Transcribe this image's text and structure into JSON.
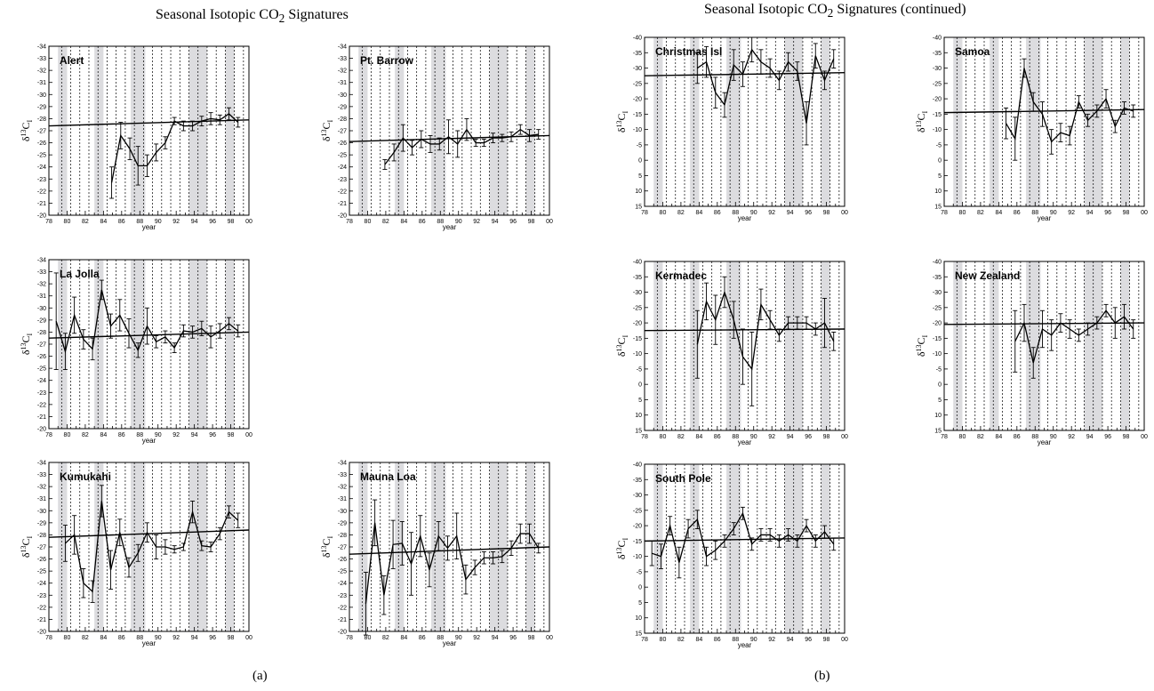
{
  "figure": {
    "title_a_pre": "Seasonal Isotopic CO",
    "title_a_sub": "2",
    "title_a_post": " Signatures",
    "title_b_pre": "Seasonal Isotopic CO",
    "title_b_sub": "2",
    "title_b_post": " Signatures (continued)",
    "caption_a": "(a)",
    "caption_b": "(b)"
  },
  "chart_data": [
    {
      "type": "line",
      "site": "Alert",
      "xlabel": "year",
      "ylabel": "δ13CI",
      "ylim": [
        -20,
        -34
      ],
      "yticks": [
        -34,
        -33,
        -32,
        -31,
        -30,
        -29,
        -28,
        -27,
        -26,
        -25,
        -24,
        -23,
        -22,
        -21,
        -20
      ],
      "xticks": [
        "78",
        "80",
        "82",
        "84",
        "86",
        "88",
        "90",
        "92",
        "94",
        "96",
        "98",
        "00"
      ],
      "x": [
        84.9,
        85.9,
        86.9,
        87.8,
        88.8,
        89.8,
        90.8,
        91.8,
        92.8,
        93.8,
        94.8,
        95.8,
        96.8,
        97.8,
        98.8
      ],
      "values": [
        -22.7,
        -26.6,
        -25.5,
        -24.1,
        -24.1,
        -25.2,
        -26.0,
        -27.8,
        -27.4,
        -27.4,
        -27.8,
        -28.0,
        -27.9,
        -28.4,
        -27.7
      ],
      "err": [
        1.3,
        1.1,
        0.9,
        1.6,
        0.9,
        0.7,
        0.5,
        0.3,
        0.4,
        0.4,
        0.4,
        0.5,
        0.4,
        0.5,
        0.4
      ],
      "trend": [
        -27.4,
        -27.9
      ]
    },
    {
      "type": "line",
      "site": "Pt. Barrow",
      "xlabel": "year",
      "ylabel": "δ13CI",
      "ylim": [
        -20,
        -34
      ],
      "yticks": [
        -34,
        -33,
        -32,
        -31,
        -30,
        -29,
        -28,
        -27,
        -26,
        -25,
        -24,
        -23,
        -22,
        -21,
        -20
      ],
      "xticks": [
        "78",
        "80",
        "82",
        "84",
        "86",
        "88",
        "90",
        "92",
        "94",
        "96",
        "98",
        "00"
      ],
      "x": [
        81.9,
        82.9,
        83.9,
        84.9,
        85.9,
        86.9,
        87.9,
        88.9,
        89.9,
        90.9,
        91.9,
        92.8,
        93.8,
        94.8,
        95.8,
        96.8,
        97.8,
        98.8
      ],
      "values": [
        -24.2,
        -25.2,
        -26.4,
        -25.6,
        -26.3,
        -25.9,
        -25.9,
        -26.5,
        -25.9,
        -27.1,
        -26.0,
        -26.0,
        -26.4,
        -26.4,
        -26.5,
        -27.1,
        -26.6,
        -26.7
      ],
      "err": [
        0.4,
        0.7,
        1.1,
        0.6,
        0.7,
        0.7,
        0.5,
        1.4,
        1.1,
        0.9,
        0.3,
        0.3,
        0.4,
        0.3,
        0.4,
        0.4,
        0.5,
        0.4
      ],
      "trend": [
        -26.1,
        -26.6
      ]
    },
    {
      "type": "line",
      "site": "La Jolla",
      "xlabel": "year",
      "ylabel": "δ13CI",
      "ylim": [
        -20,
        -34
      ],
      "yticks": [
        -34,
        -33,
        -32,
        -31,
        -30,
        -29,
        -28,
        -27,
        -26,
        -25,
        -24,
        -23,
        -22,
        -21,
        -20
      ],
      "xticks": [
        "78",
        "80",
        "82",
        "84",
        "86",
        "88",
        "90",
        "92",
        "94",
        "96",
        "98",
        "00"
      ],
      "x": [
        78.8,
        79.8,
        80.8,
        81.8,
        82.8,
        83.8,
        84.8,
        85.8,
        86.8,
        87.8,
        88.8,
        89.8,
        90.8,
        91.8,
        92.8,
        93.8,
        94.8,
        95.8,
        96.8,
        97.8,
        98.8
      ],
      "values": [
        -28.9,
        -26.4,
        -29.4,
        -27.4,
        -26.6,
        -31.5,
        -28.5,
        -29.4,
        -27.9,
        -26.5,
        -28.5,
        -27.2,
        -27.6,
        -26.7,
        -28.1,
        -28.0,
        -28.3,
        -27.6,
        -28.1,
        -28.7,
        -28.1
      ],
      "err": [
        4.0,
        1.5,
        1.5,
        0.8,
        0.9,
        0.8,
        1.0,
        1.3,
        1.2,
        0.6,
        1.5,
        0.5,
        0.5,
        0.4,
        0.5,
        0.5,
        0.6,
        0.9,
        0.6,
        0.5,
        0.5
      ],
      "trend": [
        -27.5,
        -28.0
      ]
    },
    {
      "type": "line",
      "site": "Kumukahi",
      "xlabel": "year",
      "ylabel": "δ13CI",
      "ylim": [
        -20,
        -34
      ],
      "yticks": [
        -34,
        -33,
        -32,
        -31,
        -30,
        -29,
        -28,
        -27,
        -26,
        -25,
        -24,
        -23,
        -22,
        -21,
        -20
      ],
      "xticks": [
        "78",
        "80",
        "82",
        "84",
        "86",
        "88",
        "90",
        "92",
        "94",
        "96",
        "98",
        "00"
      ],
      "x": [
        79.8,
        80.8,
        81.8,
        82.8,
        83.8,
        84.8,
        85.8,
        86.8,
        87.8,
        88.8,
        89.8,
        90.8,
        91.8,
        92.8,
        93.8,
        94.8,
        95.8,
        96.8,
        97.8,
        98.8
      ],
      "values": [
        -27.3,
        -28.0,
        -24.0,
        -23.3,
        -30.8,
        -25.1,
        -28.2,
        -25.3,
        -26.5,
        -28.2,
        -27.0,
        -27.0,
        -26.8,
        -27.0,
        -29.9,
        -27.1,
        -27.0,
        -28.1,
        -29.9,
        -29.2
      ],
      "err": [
        1.5,
        1.6,
        1.2,
        0.9,
        1.3,
        1.6,
        1.1,
        0.8,
        0.7,
        0.8,
        1.0,
        0.6,
        0.3,
        0.3,
        0.9,
        0.4,
        0.4,
        0.5,
        0.5,
        0.6
      ],
      "trend": [
        -27.8,
        -28.4
      ]
    },
    {
      "type": "line",
      "site": "Mauna Loa",
      "xlabel": "year",
      "ylabel": "δ13CI",
      "ylim": [
        -20,
        -34
      ],
      "yticks": [
        -34,
        -33,
        -32,
        -31,
        -30,
        -29,
        -28,
        -27,
        -26,
        -25,
        -24,
        -23,
        -22,
        -21,
        -20
      ],
      "xticks": [
        "78",
        "80",
        "82",
        "84",
        "86",
        "88",
        "90",
        "92",
        "94",
        "96",
        "98",
        "00"
      ],
      "x": [
        79.8,
        80.8,
        81.8,
        82.8,
        83.8,
        84.8,
        85.8,
        86.8,
        87.8,
        88.8,
        89.8,
        90.8,
        91.8,
        92.8,
        93.8,
        94.8,
        95.8,
        96.8,
        97.8,
        98.8
      ],
      "values": [
        -22.3,
        -29.0,
        -23.0,
        -27.2,
        -27.3,
        -25.6,
        -27.9,
        -25.1,
        -27.9,
        -26.9,
        -27.9,
        -24.3,
        -25.3,
        -26.1,
        -26.1,
        -26.2,
        -26.9,
        -28.1,
        -28.1,
        -26.9
      ],
      "err": [
        2.6,
        1.9,
        1.6,
        2.0,
        1.8,
        2.6,
        1.7,
        1.4,
        1.2,
        1.0,
        1.9,
        1.2,
        0.6,
        0.5,
        0.5,
        0.5,
        0.6,
        0.8,
        0.8,
        0.4
      ],
      "trend": [
        -26.4,
        -27.0
      ]
    },
    {
      "type": "line",
      "site": "Christmas Isl",
      "xlabel": "year",
      "ylabel": "δ13CI",
      "ylim": [
        15,
        -40
      ],
      "yticks": [
        -40,
        -35,
        -30,
        -25,
        -20,
        -15,
        -10,
        -5,
        0,
        5,
        10,
        15
      ],
      "xticks": [
        "78",
        "80",
        "82",
        "84",
        "86",
        "88",
        "90",
        "92",
        "94",
        "96",
        "98",
        "00"
      ],
      "x": [
        83.8,
        84.8,
        85.8,
        86.8,
        87.8,
        88.8,
        89.8,
        90.8,
        91.8,
        92.8,
        93.8,
        94.8,
        95.8,
        96.8,
        97.8,
        98.8
      ],
      "values": [
        -30,
        -32,
        -22,
        -18,
        -31,
        -28,
        -36,
        -32,
        -30,
        -26,
        -32,
        -29,
        -12,
        -34,
        -26,
        -33
      ],
      "err": [
        5,
        5,
        5,
        4,
        5,
        4,
        4,
        4,
        3,
        3,
        3,
        3,
        7,
        4,
        3,
        3
      ],
      "trend": [
        -27.5,
        -28.5
      ]
    },
    {
      "type": "line",
      "site": "Samoa",
      "xlabel": "year",
      "ylabel": "δ13CI",
      "ylim": [
        15,
        -40
      ],
      "yticks": [
        -40,
        -35,
        -30,
        -25,
        -20,
        -15,
        -10,
        -5,
        0,
        5,
        10,
        15
      ],
      "xticks": [
        "78",
        "80",
        "82",
        "84",
        "86",
        "88",
        "90",
        "92",
        "94",
        "96",
        "98",
        "00"
      ],
      "x": [
        84.8,
        85.8,
        86.8,
        87.8,
        88.8,
        89.8,
        90.8,
        91.8,
        92.8,
        93.8,
        94.8,
        95.8,
        96.8,
        97.8,
        98.8
      ],
      "values": [
        -12,
        -7,
        -30,
        -19,
        -15,
        -6,
        -9,
        -8,
        -19,
        -13,
        -16,
        -20,
        -11,
        -17,
        -16
      ],
      "err": [
        5,
        7,
        3,
        3,
        4,
        4,
        3,
        3,
        2,
        2,
        2,
        3,
        2,
        2,
        2
      ],
      "trend": [
        -15.5,
        -16.5
      ]
    },
    {
      "type": "line",
      "site": "Kermadec",
      "xlabel": "year",
      "ylabel": "δ13CI",
      "ylim": [
        15,
        -40
      ],
      "yticks": [
        -40,
        -35,
        -30,
        -25,
        -20,
        -15,
        -10,
        -5,
        0,
        5,
        10,
        15
      ],
      "xticks": [
        "78",
        "80",
        "82",
        "84",
        "86",
        "88",
        "90",
        "92",
        "94",
        "96",
        "98",
        "00"
      ],
      "x": [
        83.8,
        84.8,
        85.8,
        86.8,
        87.8,
        88.8,
        89.8,
        90.8,
        91.8,
        92.8,
        93.8,
        94.8,
        95.8,
        96.8,
        97.8,
        98.8
      ],
      "values": [
        -13,
        -27,
        -21,
        -30,
        -21,
        -9,
        -5,
        -26,
        -21,
        -16,
        -20,
        -20,
        -20,
        -18,
        -20,
        -14
      ],
      "err": [
        11,
        6,
        8,
        5,
        6,
        9,
        12,
        5,
        3,
        2,
        2,
        2,
        2,
        2,
        8,
        3
      ],
      "trend": [
        -17.5,
        -18.0
      ]
    },
    {
      "type": "line",
      "site": "New Zealand",
      "xlabel": "year",
      "ylabel": "δ13CI",
      "ylim": [
        15,
        -40
      ],
      "yticks": [
        -40,
        -35,
        -30,
        -25,
        -20,
        -15,
        -10,
        -5,
        0,
        5,
        10,
        15
      ],
      "xticks": [
        "78",
        "80",
        "82",
        "84",
        "86",
        "88",
        "90",
        "92",
        "94",
        "96",
        "98",
        "00"
      ],
      "x": [
        85.8,
        86.8,
        87.8,
        88.8,
        89.8,
        90.8,
        91.8,
        92.8,
        93.8,
        94.8,
        95.8,
        96.8,
        97.8,
        98.8
      ],
      "values": [
        -14,
        -20,
        -7,
        -18,
        -16,
        -20,
        -18,
        -16,
        -18,
        -20,
        -24,
        -20,
        -22,
        -18
      ],
      "err": [
        10,
        6,
        5,
        6,
        5,
        3,
        3,
        2,
        2,
        2,
        2,
        5,
        4,
        3
      ],
      "trend": [
        -19.5,
        -20.0
      ]
    },
    {
      "type": "line",
      "site": "South Pole",
      "xlabel": "year",
      "ylabel": "δ13CI",
      "ylim": [
        15,
        -40
      ],
      "yticks": [
        -40,
        -35,
        -30,
        -25,
        -20,
        -15,
        -10,
        -5,
        0,
        5,
        10,
        15
      ],
      "xticks": [
        "78",
        "80",
        "82",
        "84",
        "86",
        "88",
        "90",
        "92",
        "94",
        "96",
        "98",
        "00"
      ],
      "x": [
        78.8,
        79.8,
        80.8,
        81.8,
        82.8,
        83.8,
        84.8,
        85.8,
        86.8,
        87.8,
        88.8,
        89.8,
        90.8,
        91.8,
        92.8,
        93.8,
        94.8,
        95.8,
        96.8,
        97.8,
        98.8
      ],
      "values": [
        -11,
        -10,
        -20,
        -8,
        -19,
        -22,
        -10,
        -12,
        -15,
        -19,
        -24,
        -14,
        -17,
        -17,
        -15,
        -17,
        -15,
        -20,
        -15,
        -18,
        -14
      ],
      "err": [
        4,
        4,
        3,
        5,
        3,
        3,
        3,
        3,
        2,
        2,
        2,
        2,
        2,
        2,
        2,
        2,
        2,
        2,
        2,
        2,
        2
      ],
      "trend": [
        -15.0,
        -16.0
      ]
    }
  ]
}
